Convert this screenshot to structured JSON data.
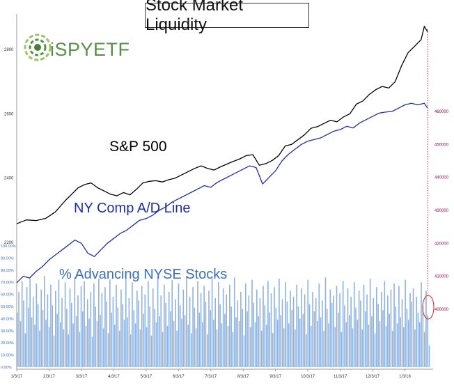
{
  "title": "Stock Market Liquidity",
  "logo": {
    "text": "iSPYETF",
    "icon": "green-spiral-logo-icon"
  },
  "labels": {
    "sp500": "S&P 500",
    "ad_line": "NY Comp A/D Line",
    "advancing": "% Advancing NYSE Stocks"
  },
  "colors": {
    "sp500": "#000000",
    "ad_line": "#1f2f9e",
    "bars": "#8fb2e0",
    "left_axis_pct": "#3d6fb6",
    "right_axis": "#8b0a50",
    "marker": "#e02020"
  },
  "chart_data": {
    "type": "line",
    "x_ticks": [
      "1/3/17",
      "2/3/17",
      "3/3/17",
      "4/3/17",
      "5/3/17",
      "6/3/17",
      "7/3/17",
      "8/3/17",
      "9/3/17",
      "10/3/17",
      "11/3/17",
      "12/3/17",
      "1/3/18"
    ],
    "left_axis_sp500_ticks": [
      "2200",
      "2400",
      "2600",
      "2800"
    ],
    "left_axis_pct_ticks": [
      "0.00%",
      "10.00%",
      "20.00%",
      "30.00%",
      "40.00%",
      "50.00%",
      "60.00%",
      "70.00%",
      "80.00%",
      "90.00%",
      "100.00%"
    ],
    "right_axis_ticks": [
      "400000",
      "410000",
      "420000",
      "430000",
      "440000",
      "450000",
      "460000"
    ],
    "sp500": {
      "name": "S&P 500",
      "ylim": [
        2200,
        2900
      ],
      "points": [
        [
          0,
          2258
        ],
        [
          0.3,
          2270
        ],
        [
          0.6,
          2268
        ],
        [
          0.9,
          2275
        ],
        [
          1.2,
          2295
        ],
        [
          1.5,
          2330
        ],
        [
          1.7,
          2350
        ],
        [
          1.9,
          2370
        ],
        [
          2.1,
          2380
        ],
        [
          2.3,
          2385
        ],
        [
          2.5,
          2370
        ],
        [
          2.7,
          2360
        ],
        [
          2.9,
          2350
        ],
        [
          3.1,
          2345
        ],
        [
          3.3,
          2355
        ],
        [
          3.5,
          2348
        ],
        [
          3.7,
          2365
        ],
        [
          3.9,
          2385
        ],
        [
          4.1,
          2390
        ],
        [
          4.3,
          2392
        ],
        [
          4.5,
          2388
        ],
        [
          4.7,
          2395
        ],
        [
          4.9,
          2400
        ],
        [
          5.1,
          2410
        ],
        [
          5.3,
          2420
        ],
        [
          5.5,
          2430
        ],
        [
          5.7,
          2438
        ],
        [
          5.9,
          2430
        ],
        [
          6.1,
          2425
        ],
        [
          6.3,
          2435
        ],
        [
          6.6,
          2448
        ],
        [
          6.9,
          2460
        ],
        [
          7.1,
          2470
        ],
        [
          7.3,
          2473
        ],
        [
          7.5,
          2440
        ],
        [
          7.7,
          2445
        ],
        [
          7.9,
          2455
        ],
        [
          8.1,
          2470
        ],
        [
          8.3,
          2500
        ],
        [
          8.5,
          2505
        ],
        [
          8.7,
          2520
        ],
        [
          8.9,
          2535
        ],
        [
          9.1,
          2555
        ],
        [
          9.3,
          2560
        ],
        [
          9.5,
          2570
        ],
        [
          9.7,
          2580
        ],
        [
          9.9,
          2575
        ],
        [
          10.1,
          2590
        ],
        [
          10.3,
          2600
        ],
        [
          10.5,
          2630
        ],
        [
          10.7,
          2640
        ],
        [
          10.9,
          2660
        ],
        [
          11.1,
          2675
        ],
        [
          11.3,
          2685
        ],
        [
          11.5,
          2680
        ],
        [
          11.7,
          2700
        ],
        [
          11.9,
          2750
        ],
        [
          12.1,
          2790
        ],
        [
          12.3,
          2810
        ],
        [
          12.5,
          2830
        ],
        [
          12.6,
          2872
        ],
        [
          12.7,
          2855
        ]
      ]
    },
    "ad_line": {
      "name": "NY Comp A/D Line",
      "ylim": [
        396000,
        470000
      ],
      "points": [
        [
          0,
          408000
        ],
        [
          0.2,
          410000
        ],
        [
          0.4,
          409500
        ],
        [
          0.6,
          411500
        ],
        [
          0.8,
          413000
        ],
        [
          1.0,
          415000
        ],
        [
          1.2,
          416500
        ],
        [
          1.4,
          418000
        ],
        [
          1.6,
          419500
        ],
        [
          1.8,
          421000
        ],
        [
          2.0,
          420000
        ],
        [
          2.2,
          417000
        ],
        [
          2.4,
          416000
        ],
        [
          2.6,
          418000
        ],
        [
          2.8,
          420000
        ],
        [
          3.0,
          421500
        ],
        [
          3.2,
          423000
        ],
        [
          3.4,
          424000
        ],
        [
          3.6,
          425500
        ],
        [
          3.8,
          427000
        ],
        [
          4.0,
          427500
        ],
        [
          4.2,
          428500
        ],
        [
          4.4,
          430000
        ],
        [
          4.6,
          431000
        ],
        [
          4.8,
          432500
        ],
        [
          5.0,
          433500
        ],
        [
          5.2,
          434500
        ],
        [
          5.4,
          435500
        ],
        [
          5.6,
          436500
        ],
        [
          5.8,
          437500
        ],
        [
          6.0,
          437000
        ],
        [
          6.2,
          438500
        ],
        [
          6.4,
          439500
        ],
        [
          6.6,
          440500
        ],
        [
          6.8,
          441500
        ],
        [
          7.0,
          442500
        ],
        [
          7.2,
          443500
        ],
        [
          7.4,
          443000
        ],
        [
          7.6,
          438000
        ],
        [
          7.8,
          440000
        ],
        [
          8.0,
          442000
        ],
        [
          8.2,
          445000
        ],
        [
          8.4,
          447000
        ],
        [
          8.6,
          448500
        ],
        [
          8.8,
          450000
        ],
        [
          9.0,
          451000
        ],
        [
          9.2,
          451500
        ],
        [
          9.4,
          452000
        ],
        [
          9.6,
          453000
        ],
        [
          9.8,
          454000
        ],
        [
          10.0,
          454500
        ],
        [
          10.2,
          455500
        ],
        [
          10.4,
          455000
        ],
        [
          10.6,
          456500
        ],
        [
          10.8,
          457500
        ],
        [
          11.0,
          458500
        ],
        [
          11.2,
          459500
        ],
        [
          11.4,
          459800
        ],
        [
          11.6,
          460000
        ],
        [
          11.8,
          461000
        ],
        [
          12.0,
          462000
        ],
        [
          12.2,
          462500
        ],
        [
          12.4,
          462000
        ],
        [
          12.6,
          462500
        ],
        [
          12.7,
          461000
        ]
      ]
    },
    "advancing_pct": {
      "name": "% Advancing NYSE Stocks",
      "ylim": [
        0,
        100
      ],
      "note_values_estimated": "per-session percentages, ~270 sessions",
      "values": [
        45,
        62,
        38,
        71,
        55,
        28,
        66,
        49,
        73,
        41,
        58,
        35,
        69,
        52,
        30,
        64,
        47,
        75,
        39,
        60,
        33,
        68,
        51,
        26,
        63,
        44,
        72,
        37,
        57,
        31,
        70,
        48,
        27,
        65,
        53,
        36,
        74,
        42,
        59,
        29,
        67,
        46,
        71,
        34,
        56,
        40,
        62,
        25,
        69,
        50,
        38,
        73,
        43,
        61,
        32,
        66,
        54,
        28,
        72,
        45,
        58,
        35,
        68,
        49,
        30,
        64,
        52,
        39,
        76,
        41,
        57,
        27,
        70,
        47,
        36,
        63,
        55,
        31,
        67,
        44,
        60,
        33,
        71,
        50,
        26,
        65,
        48,
        37,
        74,
        42,
        59,
        29,
        68,
        53,
        34,
        62,
        46,
        72,
        38,
        56,
        30,
        69,
        51,
        40,
        64,
        43,
        75,
        35,
        58,
        28,
        66,
        49,
        32,
        71,
        45,
        61,
        37,
        67,
        54,
        27,
        63,
        47,
        73,
        39,
        57,
        31,
        70,
        52,
        36,
        65,
        44,
        60,
        34,
        68,
        50,
        29,
        74,
        41,
        55,
        38,
        62,
        48,
        26,
        69,
        46,
        59,
        33,
        72,
        53,
        37,
        64,
        42,
        57,
        30,
        67,
        51,
        35,
        71,
        45,
        61,
        28,
        66,
        49,
        39,
        73,
        43,
        56,
        32,
        70,
        54,
        36,
        63,
        47,
        58,
        31,
        68,
        50,
        40,
        65,
        44,
        60,
        27,
        72,
        52,
        34,
        62,
        46,
        57,
        38,
        69,
        41,
        55,
        30,
        74,
        48,
        36,
        64,
        53,
        59,
        33,
        67,
        45,
        61,
        29,
        71,
        51,
        37,
        65,
        43,
        58,
        32,
        70,
        49,
        39,
        63,
        55,
        31,
        68,
        46,
        60,
        35,
        73,
        42,
        57,
        28,
        66,
        52,
        38,
        62,
        47,
        71,
        34,
        59,
        44,
        64,
        30,
        69,
        50,
        36,
        67,
        41,
        56,
        33,
        72,
        48,
        39,
        61,
        54,
        65,
        31,
        58,
        45,
        37,
        70,
        51,
        29,
        63,
        43,
        18
      ]
    }
  }
}
